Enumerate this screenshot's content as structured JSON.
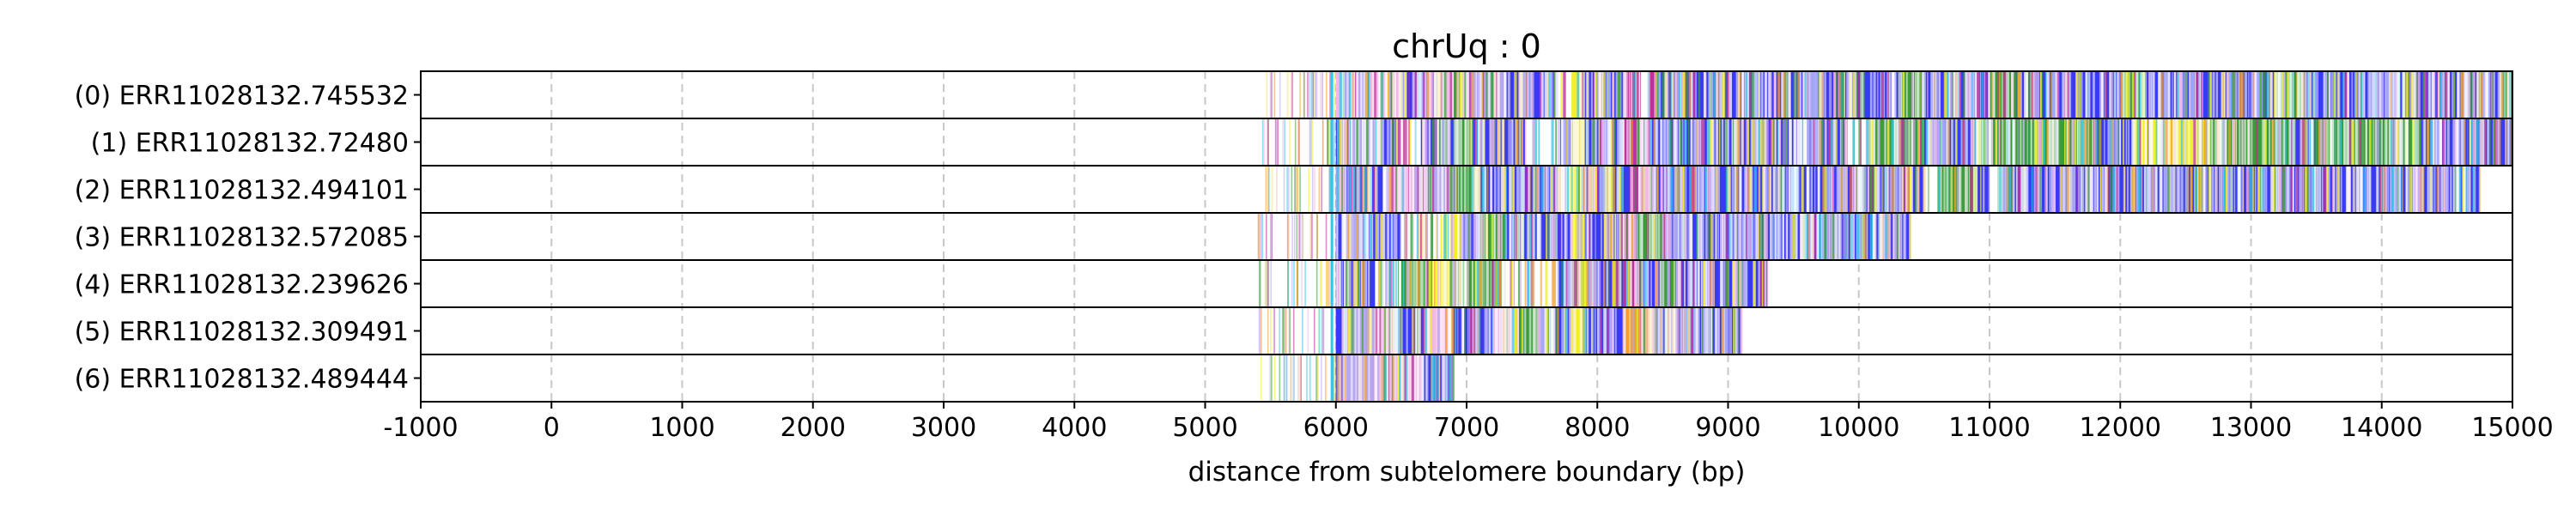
{
  "chart_data": {
    "type": "heatmap",
    "title": "chrUq : 0",
    "xlabel": "distance from subtelomere boundary (bp)",
    "ylabel": "",
    "xlim": [
      -1000,
      15000
    ],
    "x_ticks": [
      -1000,
      0,
      1000,
      2000,
      3000,
      4000,
      5000,
      6000,
      7000,
      8000,
      9000,
      10000,
      11000,
      12000,
      13000,
      14000,
      15000
    ],
    "x_tick_labels": [
      "-1000",
      "0",
      "1000",
      "2000",
      "3000",
      "4000",
      "5000",
      "6000",
      "7000",
      "8000",
      "9000",
      "10000",
      "11000",
      "12000",
      "13000",
      "14000",
      "15000"
    ],
    "grid": "vertical dashed at x ticks",
    "colors": {
      "blue": "#3a3af2",
      "green": "#3c9b3c",
      "yellow": "#f2ee2a",
      "magenta": "#c0309a",
      "orange": "#f0a030",
      "pink": "#f2b8e6",
      "lavender": "#b7a7f0",
      "cyan": "#33c6e8",
      "white": "#ffffff",
      "frame": "#000000",
      "grid": "#c8c8c8"
    },
    "reads": [
      {
        "label": "(0) ERR11028132.745532",
        "start": 5400,
        "end": 15000,
        "dominant": [
          "blue",
          "green"
        ]
      },
      {
        "label": "(1) ERR11028132.72480",
        "start": 5400,
        "end": 15000,
        "dominant": [
          "blue",
          "green",
          "yellow"
        ]
      },
      {
        "label": "(2) ERR11028132.494101",
        "start": 5450,
        "end": 14750,
        "dominant": [
          "blue",
          "green"
        ]
      },
      {
        "label": "(3) ERR11028132.572085",
        "start": 5400,
        "end": 10400,
        "dominant": [
          "blue",
          "green"
        ]
      },
      {
        "label": "(4) ERR11028132.239626",
        "start": 5400,
        "end": 9300,
        "dominant": [
          "blue",
          "green"
        ]
      },
      {
        "label": "(5) ERR11028132.309491",
        "start": 5400,
        "end": 9100,
        "dominant": [
          "blue",
          "orange"
        ]
      },
      {
        "label": "(6) ERR11028132.489444",
        "start": 5400,
        "end": 6900,
        "dominant": [
          "blue",
          "pink"
        ]
      }
    ],
    "segments": [
      [
        [
          6000,
          6060,
          "pink"
        ],
        [
          6060,
          6100,
          "blue"
        ],
        [
          6100,
          6120,
          "cyan"
        ],
        [
          6120,
          6250,
          "lavender"
        ],
        [
          6250,
          6500,
          "pink"
        ],
        [
          6500,
          6700,
          "blue"
        ],
        [
          6700,
          6900,
          "pink"
        ],
        [
          6900,
          7000,
          "green"
        ],
        [
          7000,
          7300,
          "lavender"
        ],
        [
          7300,
          7700,
          "blue"
        ],
        [
          7700,
          7800,
          "white"
        ],
        [
          7800,
          7900,
          "yellow"
        ],
        [
          7900,
          8200,
          "blue"
        ],
        [
          8200,
          8320,
          "magenta"
        ],
        [
          8320,
          8380,
          "white"
        ],
        [
          8380,
          8440,
          "magenta"
        ],
        [
          8440,
          10300,
          "blue"
        ],
        [
          10300,
          10500,
          "green"
        ],
        [
          10500,
          11000,
          "blue"
        ],
        [
          11000,
          11200,
          "green"
        ],
        [
          11200,
          12000,
          "blue"
        ],
        [
          12000,
          12200,
          "green"
        ],
        [
          12200,
          13200,
          "blue"
        ],
        [
          13200,
          13400,
          "green"
        ],
        [
          13400,
          14900,
          "blue"
        ],
        [
          14900,
          15000,
          "green"
        ]
      ],
      [
        [
          6000,
          6060,
          "blue"
        ],
        [
          6060,
          6300,
          "lavender"
        ],
        [
          6300,
          6500,
          "blue"
        ],
        [
          6500,
          6650,
          "white"
        ],
        [
          6650,
          6900,
          "blue"
        ],
        [
          6900,
          7050,
          "green"
        ],
        [
          7050,
          7450,
          "blue"
        ],
        [
          7450,
          7700,
          "white"
        ],
        [
          7700,
          7800,
          "blue"
        ],
        [
          7800,
          7900,
          "yellow"
        ],
        [
          7900,
          8200,
          "blue"
        ],
        [
          8200,
          8300,
          "magenta"
        ],
        [
          8300,
          8400,
          "pink"
        ],
        [
          8400,
          9900,
          "blue"
        ],
        [
          9900,
          10100,
          "white"
        ],
        [
          10100,
          10500,
          "green"
        ],
        [
          10500,
          10900,
          "blue"
        ],
        [
          10900,
          11800,
          "green"
        ],
        [
          11800,
          12100,
          "blue"
        ],
        [
          12100,
          12700,
          "yellow"
        ],
        [
          12700,
          13300,
          "green"
        ],
        [
          13300,
          13500,
          "blue"
        ],
        [
          13500,
          14300,
          "green"
        ],
        [
          14300,
          15000,
          "blue"
        ]
      ],
      [
        [
          6000,
          6060,
          "blue"
        ],
        [
          6060,
          6400,
          "blue"
        ],
        [
          6400,
          6600,
          "pink"
        ],
        [
          6600,
          6900,
          "lavender"
        ],
        [
          6900,
          7100,
          "green"
        ],
        [
          7100,
          7700,
          "blue"
        ],
        [
          7700,
          7800,
          "white"
        ],
        [
          7800,
          7900,
          "yellow"
        ],
        [
          7900,
          8250,
          "blue"
        ],
        [
          8250,
          8320,
          "magenta"
        ],
        [
          8320,
          8450,
          "pink"
        ],
        [
          8450,
          10500,
          "blue"
        ],
        [
          10500,
          10600,
          "white"
        ],
        [
          10600,
          10900,
          "green"
        ],
        [
          10900,
          11000,
          "blue"
        ],
        [
          11000,
          11100,
          "white"
        ],
        [
          11100,
          14750,
          "blue"
        ]
      ],
      [
        [
          6000,
          6060,
          "blue"
        ],
        [
          6060,
          6200,
          "lavender"
        ],
        [
          6200,
          6500,
          "blue"
        ],
        [
          6500,
          6800,
          "white"
        ],
        [
          6800,
          6950,
          "yellow"
        ],
        [
          6950,
          7100,
          "blue"
        ],
        [
          7100,
          7300,
          "green"
        ],
        [
          7300,
          7800,
          "blue"
        ],
        [
          7800,
          7900,
          "yellow"
        ],
        [
          7900,
          8200,
          "blue"
        ],
        [
          8200,
          8300,
          "magenta"
        ],
        [
          8300,
          8500,
          "green"
        ],
        [
          8500,
          10400,
          "blue"
        ]
      ],
      [
        [
          6000,
          6060,
          "blue"
        ],
        [
          6060,
          6300,
          "blue"
        ],
        [
          6300,
          6500,
          "white"
        ],
        [
          6500,
          6700,
          "green"
        ],
        [
          6700,
          6900,
          "yellow"
        ],
        [
          6900,
          7300,
          "green"
        ],
        [
          7300,
          7700,
          "white"
        ],
        [
          7700,
          7800,
          "blue"
        ],
        [
          7800,
          7920,
          "yellow"
        ],
        [
          7920,
          8200,
          "blue"
        ],
        [
          8200,
          8350,
          "magenta"
        ],
        [
          8350,
          8500,
          "blue"
        ],
        [
          8500,
          8600,
          "green"
        ],
        [
          8600,
          9300,
          "blue"
        ]
      ],
      [
        [
          6000,
          6060,
          "blue"
        ],
        [
          6060,
          6300,
          "lavender"
        ],
        [
          6300,
          6500,
          "pink"
        ],
        [
          6500,
          6700,
          "blue"
        ],
        [
          6700,
          6900,
          "pink"
        ],
        [
          6900,
          7200,
          "blue"
        ],
        [
          7200,
          7400,
          "pink"
        ],
        [
          7400,
          7550,
          "green"
        ],
        [
          7550,
          7800,
          "blue"
        ],
        [
          7800,
          7900,
          "yellow"
        ],
        [
          7900,
          8200,
          "blue"
        ],
        [
          8200,
          8450,
          "orange"
        ],
        [
          8450,
          9100,
          "blue"
        ]
      ],
      [
        [
          6000,
          6060,
          "blue"
        ],
        [
          6060,
          6300,
          "lavender"
        ],
        [
          6300,
          6650,
          "pink"
        ],
        [
          6650,
          6900,
          "blue"
        ]
      ]
    ]
  }
}
